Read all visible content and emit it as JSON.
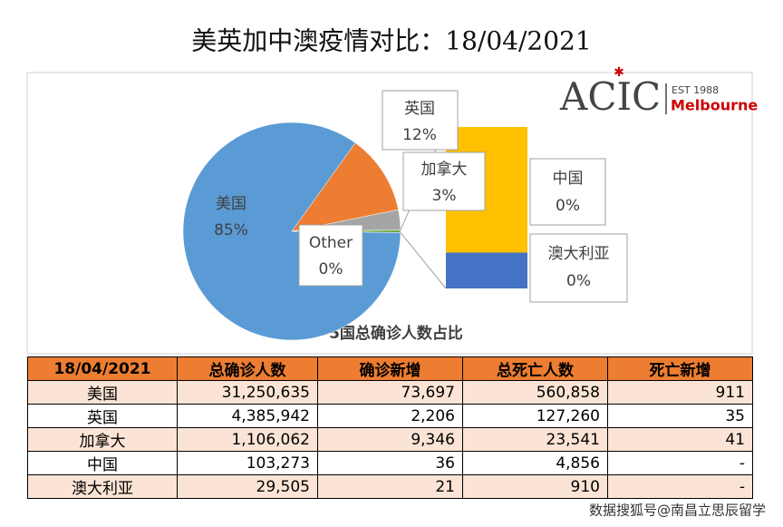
{
  "title": "美英加中澳疫情对比：18/04/2021",
  "logo": {
    "name": "ACIC",
    "est": "EST 1988",
    "city": "Melbourne"
  },
  "chart_data": {
    "type": "pie",
    "title": "5国总确诊人数占比",
    "categories": [
      "美国",
      "英国",
      "加拿大",
      "Other"
    ],
    "values": [
      84.75,
      11.89,
      3.0,
      0.36
    ],
    "value_labels": [
      "85%",
      "12%",
      "3%",
      "0%"
    ],
    "colors": [
      "#5b9bd5",
      "#ed7d31",
      "#a5a5a5",
      "#70ad47"
    ],
    "bar_of_pie": {
      "categories": [
        "中国",
        "澳大利亚"
      ],
      "values": [
        0.28,
        0.08
      ],
      "value_labels": [
        "0%",
        "0%"
      ],
      "colors": [
        "#ffc000",
        "#4472c4"
      ]
    }
  },
  "table": {
    "header": [
      "18/04/2021",
      "总确诊人数",
      "确诊新增",
      "总死亡人数",
      "死亡新增"
    ],
    "rows": [
      [
        "美国",
        "31,250,635",
        "73,697",
        "560,858",
        "911"
      ],
      [
        "英国",
        "4,385,942",
        "2,206",
        "127,260",
        "35"
      ],
      [
        "加拿大",
        "1,106,062",
        "9,346",
        "23,541",
        "41"
      ],
      [
        "中国",
        "103,273",
        "36",
        "4,856",
        "-"
      ],
      [
        "澳大利亚",
        "29,505",
        "21",
        "910",
        "-"
      ]
    ]
  },
  "watermark": "数据搜狐号@南昌立思辰留学"
}
